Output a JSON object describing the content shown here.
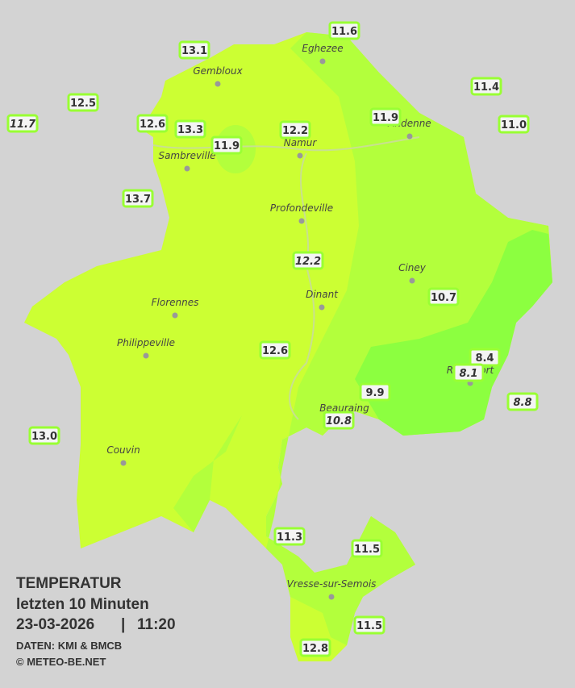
{
  "stations": [
    "11.6",
    "13.1",
    "12.5",
    "11.7",
    "12.6",
    "13.3",
    "11.9",
    "12.2",
    "11.9",
    "11.4",
    "11.0",
    "13.7",
    "12.2",
    "10.7",
    "12.6",
    "8.4",
    "8.1",
    "9.9",
    "8.8",
    "10.8",
    "13.0",
    "11.3",
    "11.5",
    "11.5",
    "12.8"
  ],
  "towns": [
    "Eghezee",
    "Gembloux",
    "Andenne",
    "Namur",
    "Sambreville",
    "Profondeville",
    "Ciney",
    "Dinant",
    "Florennes",
    "Philippeville",
    "Rochefort",
    "Beauraing",
    "Couvin",
    "Vresse-sur-Semois"
  ],
  "legend": {
    "title": "TEMPERATUR",
    "subtitle": "letzten 10 Minuten",
    "date": "23-03-2026",
    "separator": "|",
    "time": "11:20",
    "source": "DATEN: KMI & BMCB",
    "copyright": "© METEO-BE.NET"
  }
}
